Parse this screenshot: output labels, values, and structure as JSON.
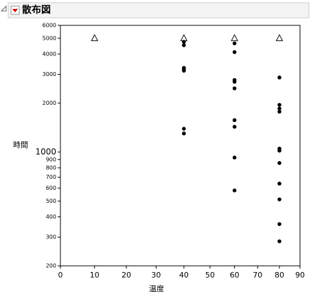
{
  "chart_data": {
    "type": "scatter",
    "title": "散布図",
    "x_label": "温度",
    "y_label": "時間",
    "x_scale": "arrhenius",
    "y_scale": "log",
    "xlim": [
      0,
      90
    ],
    "xticks": [
      0,
      10,
      20,
      30,
      40,
      50,
      60,
      70,
      80,
      90
    ],
    "ylim": [
      200,
      6000
    ],
    "yticks": [
      200,
      300,
      400,
      500,
      600,
      700,
      800,
      900,
      1000,
      2000,
      3000,
      4000,
      5000,
      6000
    ],
    "series": [
      {
        "marker": "triangle",
        "color": "#000000",
        "x": [
          10,
          40,
          60,
          80
        ],
        "values": [
          5000,
          5000,
          5000,
          5000
        ]
      },
      {
        "marker": "dot",
        "color": "#000000",
        "x": [
          40,
          40,
          40,
          40,
          40,
          40,
          40,
          60,
          60,
          60,
          60,
          60,
          60,
          60,
          60,
          60,
          80,
          80,
          80,
          80,
          80,
          80,
          80,
          80,
          80,
          80,
          80
        ],
        "values": [
          4750,
          4530,
          3290,
          3230,
          3160,
          1390,
          1300,
          4650,
          4110,
          2770,
          2700,
          2460,
          1570,
          1430,
          925,
          581,
          2870,
          1950,
          1850,
          1770,
          1050,
          1020,
          856,
          640,
          512,
          361,
          283
        ]
      }
    ]
  }
}
